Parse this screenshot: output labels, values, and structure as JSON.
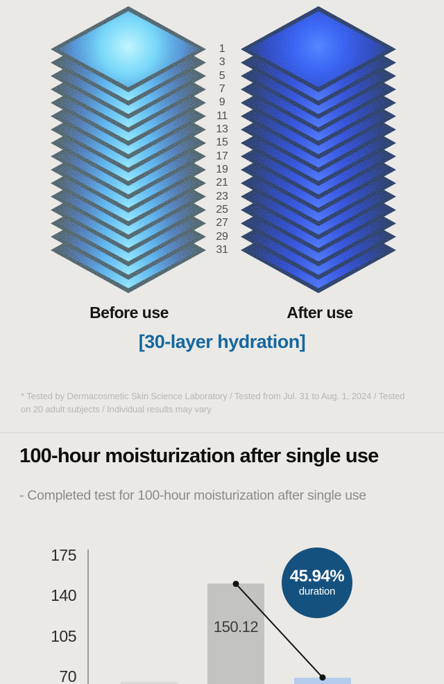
{
  "hydration_section": {
    "layer_numbers": [
      "1",
      "3",
      "5",
      "7",
      "9",
      "11",
      "13",
      "15",
      "17",
      "19",
      "21",
      "23",
      "25",
      "27",
      "29",
      "31"
    ],
    "before_label": "Before use",
    "after_label": "After use",
    "caption": "[30-layer hydration]",
    "caption_color": "#15679e",
    "before_stack_glow_color": "#5fd2f8",
    "after_stack_glow_color": "#2453f2"
  },
  "disclaimer": {
    "text": "* Tested by Dermacosmetic Skin Science Laboratory / Tested from Jul. 31 to Aug. 1, 2024 / Tested on 20 adult subjects / Individual results may vary"
  },
  "chart_data": {
    "type": "bar",
    "title": "100-hour moisturization after single use",
    "subtitle": "- Completed test for 100-hour moisturization after single use",
    "yticks": [
      175,
      140,
      105,
      70
    ],
    "ylim_visible": [
      70,
      175
    ],
    "grid": false,
    "bars": [
      {
        "label": "",
        "value": 65,
        "color": "#dbdad8"
      },
      {
        "label": "150.12",
        "value": 150.12,
        "color": "#c3c3c2"
      },
      {
        "label": "",
        "value": 68.97,
        "color": "#b5cbec"
      }
    ],
    "connector": {
      "from_bar": 1,
      "to_bar": 2,
      "style": "black line with end dots"
    },
    "annotation": {
      "text": "45.94%",
      "subtext": "duration",
      "color": "#15517e"
    }
  }
}
